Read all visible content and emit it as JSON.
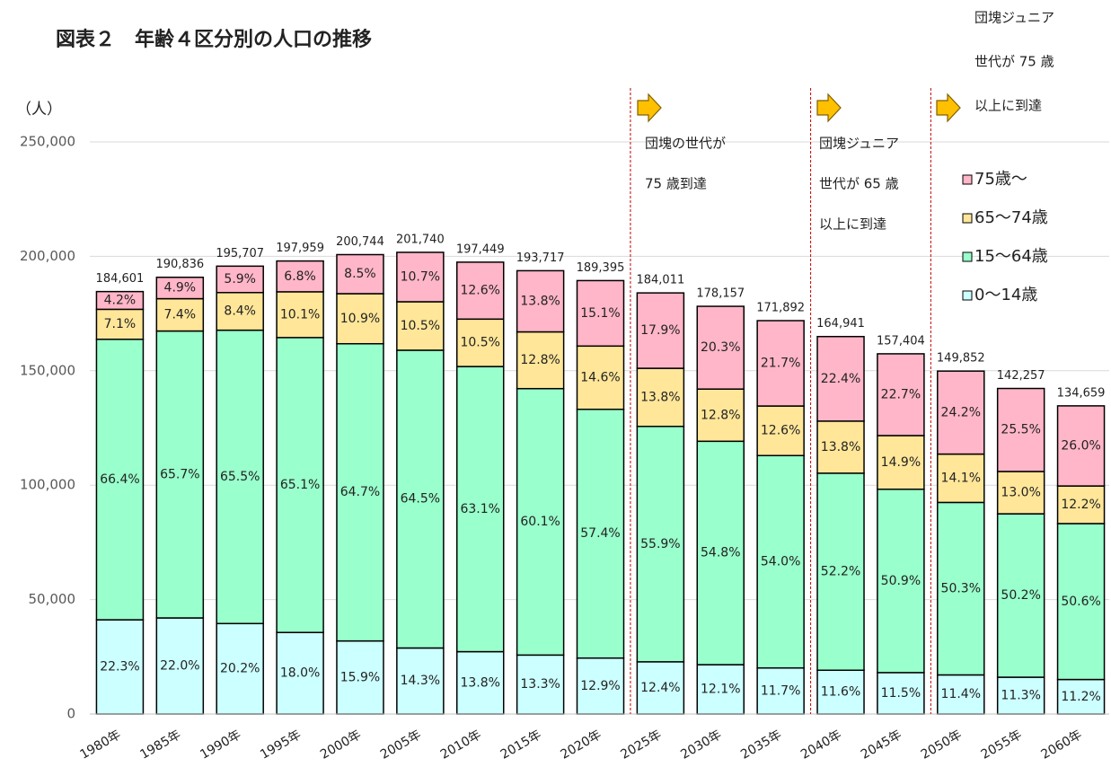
{
  "chart_data": {
    "type": "stacked_bar",
    "title": "図表２　年齢４区分別の人口の推移",
    "ylabel": "（人）",
    "categories": [
      "1980年",
      "1985年",
      "1990年",
      "1995年",
      "2000年",
      "2005年",
      "2010年",
      "2015年",
      "2020年",
      "2025年",
      "2030年",
      "2035年",
      "2040年",
      "2045年",
      "2050年",
      "2055年",
      "2060年"
    ],
    "totals": {
      "values": [
        184601,
        190836,
        195707,
        197959,
        200744,
        201740,
        197449,
        193717,
        189395,
        184011,
        178157,
        171892,
        164941,
        157404,
        149852,
        142257,
        134659
      ],
      "value_labels": [
        "184,601",
        "190,836",
        "195,707",
        "197,959",
        "200,744",
        "201,740",
        "197,449",
        "193,717",
        "189,395",
        "184,011",
        "178,157",
        "171,892",
        "164,941",
        "157,404",
        "149,852",
        "142,257",
        "134,659"
      ]
    },
    "series": [
      {
        "name": "0〜14歳",
        "color": "#ccffff",
        "values": [
          22.3,
          22,
          20.2,
          18,
          15.9,
          14.3,
          13.8,
          13.3,
          12.9,
          12.4,
          12.1,
          11.7,
          11.6,
          11.5,
          11.4,
          11.3,
          11.2
        ],
        "value_labels": [
          "22.3%",
          "22.0%",
          "20.2%",
          "18.0%",
          "15.9%",
          "14.3%",
          "13.8%",
          "13.3%",
          "12.9%",
          "12.4%",
          "12.1%",
          "11.7%",
          "11.6%",
          "11.5%",
          "11.4%",
          "11.3%",
          "11.2%"
        ]
      },
      {
        "name": "15〜64歳",
        "color": "#99ffcc",
        "values": [
          66.4,
          65.7,
          65.5,
          65.1,
          64.7,
          64.5,
          63.1,
          60.1,
          57.4,
          55.9,
          54.8,
          54,
          52.2,
          50.9,
          50.3,
          50.2,
          50.6
        ],
        "value_labels": [
          "66.4%",
          "65.7%",
          "65.5%",
          "65.1%",
          "64.7%",
          "64.5%",
          "63.1%",
          "60.1%",
          "57.4%",
          "55.9%",
          "54.8%",
          "54.0%",
          "52.2%",
          "50.9%",
          "50.3%",
          "50.2%",
          "50.6%"
        ]
      },
      {
        "name": "65〜74歳",
        "color": "#ffe699",
        "values": [
          7.1,
          7.4,
          8.4,
          10.1,
          10.9,
          10.5,
          10.5,
          12.8,
          14.6,
          13.8,
          12.8,
          12.6,
          13.8,
          14.9,
          14.1,
          13,
          12.2
        ],
        "value_labels": [
          "7.1%",
          "7.4%",
          "8.4%",
          "10.1%",
          "10.9%",
          "10.5%",
          "10.5%",
          "12.8%",
          "14.6%",
          "13.8%",
          "12.8%",
          "12.6%",
          "13.8%",
          "14.9%",
          "14.1%",
          "13.0%",
          "12.2%"
        ]
      },
      {
        "name": "75歳〜",
        "color": "#ffb6c8",
        "values": [
          4.2,
          4.9,
          5.9,
          6.8,
          8.5,
          10.7,
          12.6,
          13.8,
          15.1,
          17.9,
          20.3,
          21.7,
          22.4,
          22.7,
          24.2,
          25.5,
          26
        ],
        "value_labels": [
          "4.2%",
          "4.9%",
          "5.9%",
          "6.8%",
          "8.5%",
          "10.7%",
          "12.6%",
          "13.8%",
          "15.1%",
          "17.9%",
          "20.3%",
          "21.7%",
          "22.4%",
          "22.7%",
          "24.2%",
          "25.5%",
          "26.0%"
        ]
      }
    ],
    "ylim": [
      0,
      250000
    ],
    "yticks": [
      0,
      {
        "value": 50000,
        "label": "50,000"
      },
      {
        "value": 100000,
        "label": "100,000"
      },
      {
        "value": 150000,
        "label": "150,000"
      },
      {
        "value": 200000,
        "label": "200,000"
      },
      {
        "value": 250000,
        "label": "250,000"
      }
    ],
    "grid": true,
    "legend": "top-right",
    "annotations": [
      {
        "lines": [
          "団塊の世代が",
          "75 歳到達"
        ]
      },
      {
        "lines": [
          "団塊ジュニア",
          "世代が 65 歳",
          "以上に到達"
        ]
      },
      {
        "lines": [
          "団塊ジュニア",
          "世代が 75 歳",
          "以上に到達"
        ]
      }
    ]
  }
}
